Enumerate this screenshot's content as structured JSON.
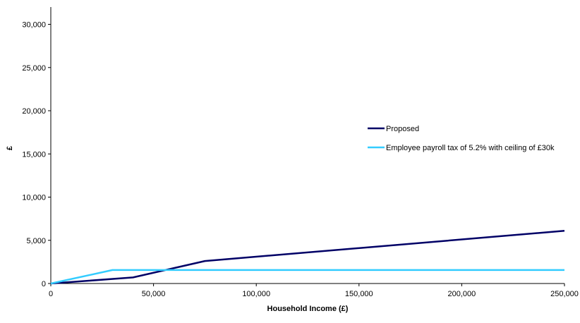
{
  "chart_data": {
    "type": "line",
    "title": "",
    "xlabel": "Household Income (£)",
    "ylabel": "£",
    "xlim": [
      0,
      250000
    ],
    "ylim": [
      0,
      32000
    ],
    "xticks": [
      0,
      50000,
      100000,
      150000,
      200000,
      250000
    ],
    "xtick_labels": [
      "0",
      "50,000",
      "100,000",
      "150,000",
      "200,000",
      "250,000"
    ],
    "yticks": [
      0,
      5000,
      10000,
      15000,
      20000,
      25000,
      30000
    ],
    "ytick_labels": [
      "0",
      "5,000",
      "10,000",
      "15,000",
      "20,000",
      "25,000",
      "30,000"
    ],
    "grid": false,
    "legend_position": "right",
    "series": [
      {
        "name": "Proposed",
        "color": "#000066",
        "x": [
          0,
          40000,
          75000,
          250000
        ],
        "y": [
          0,
          700,
          2600,
          6100
        ]
      },
      {
        "name": "Employee payroll tax of 5.2% with ceiling of £30k",
        "color": "#33ccff",
        "x": [
          0,
          30000,
          250000
        ],
        "y": [
          0,
          1560,
          1560
        ]
      }
    ]
  }
}
